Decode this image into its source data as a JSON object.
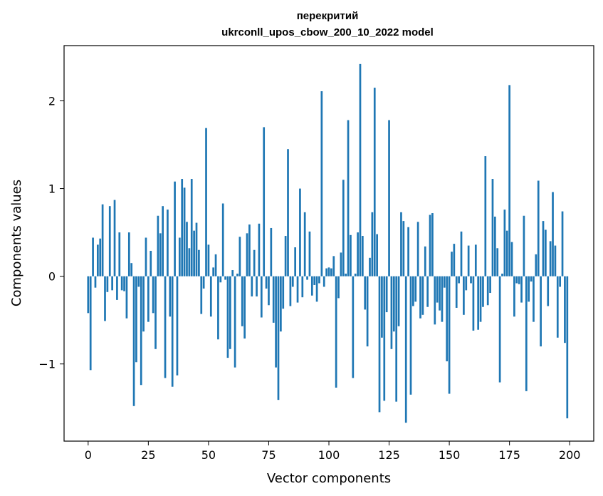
{
  "chart_data": {
    "type": "bar",
    "title": "перекритий",
    "subtitle": "ukrconll_upos_cbow_200_10_2022 model",
    "xlabel": "Vector components",
    "ylabel": "Components values",
    "xlim": [
      -10,
      210
    ],
    "ylim": [
      -1.88,
      2.63
    ],
    "xticks": [
      0,
      25,
      50,
      75,
      100,
      125,
      150,
      175,
      200
    ],
    "yticks": [
      -1,
      0,
      1,
      2
    ],
    "ytick_labels": [
      "−1",
      "0",
      "1",
      "2"
    ],
    "bar_color": "#1f77b4",
    "grid": false,
    "values": [
      -0.42,
      -1.07,
      0.44,
      -0.13,
      0.36,
      0.43,
      0.82,
      -0.51,
      -0.18,
      0.8,
      -0.16,
      0.87,
      -0.27,
      0.5,
      -0.16,
      -0.17,
      -0.48,
      0.5,
      0.15,
      -1.48,
      -0.98,
      -0.12,
      -1.24,
      -0.63,
      0.44,
      -0.52,
      0.29,
      -0.42,
      -0.83,
      0.69,
      0.49,
      0.8,
      -1.16,
      0.76,
      -0.46,
      -1.26,
      1.08,
      -1.13,
      0.44,
      1.11,
      1.01,
      0.62,
      0.32,
      1.11,
      0.52,
      0.61,
      0.3,
      -0.43,
      -0.14,
      1.69,
      0.36,
      -0.46,
      0.1,
      0.25,
      -0.72,
      -0.07,
      0.83,
      -0.04,
      -0.93,
      -0.83,
      0.07,
      -1.04,
      0.03,
      0.45,
      -0.57,
      -0.71,
      0.49,
      0.59,
      -0.23,
      0.3,
      -0.23,
      0.6,
      -0.47,
      1.7,
      -0.14,
      -0.33,
      0.55,
      -0.53,
      -1.04,
      -1.41,
      -0.63,
      -0.37,
      0.46,
      1.45,
      -0.34,
      -0.12,
      0.33,
      -0.3,
      1.0,
      -0.24,
      0.73,
      -0.04,
      0.51,
      -0.22,
      -0.1,
      -0.29,
      -0.08,
      2.11,
      -0.12,
      0.09,
      0.1,
      0.09,
      0.23,
      -1.27,
      -0.25,
      0.27,
      1.1,
      0.03,
      1.78,
      0.47,
      -1.16,
      0.03,
      0.5,
      2.42,
      0.46,
      -0.38,
      -0.8,
      0.21,
      0.73,
      2.15,
      0.48,
      -1.55,
      -0.7,
      -1.42,
      -0.41,
      1.78,
      -0.83,
      -0.63,
      -1.43,
      -0.57,
      0.73,
      0.63,
      -1.67,
      0.56,
      -1.35,
      -0.34,
      -0.29,
      0.62,
      -0.48,
      -0.44,
      0.34,
      -0.35,
      0.7,
      0.72,
      -0.55,
      -0.3,
      -0.39,
      -0.52,
      -0.13,
      -0.97,
      -1.34,
      0.28,
      0.37,
      -0.36,
      -0.08,
      0.51,
      -0.44,
      -0.16,
      0.35,
      -0.08,
      -0.62,
      0.36,
      -0.61,
      -0.52,
      -0.35,
      1.37,
      -0.33,
      -0.19,
      1.11,
      0.68,
      0.32,
      -1.21,
      0.03,
      0.76,
      0.52,
      2.18,
      0.39,
      -0.46,
      -0.08,
      -0.09,
      -0.3,
      0.69,
      -1.31,
      -0.29,
      -0.06,
      -0.52,
      0.25,
      1.09,
      -0.8,
      0.63,
      0.53,
      -0.34,
      0.4,
      0.96,
      0.35,
      -0.7,
      -0.12,
      0.74,
      -0.76,
      -1.62
    ]
  }
}
